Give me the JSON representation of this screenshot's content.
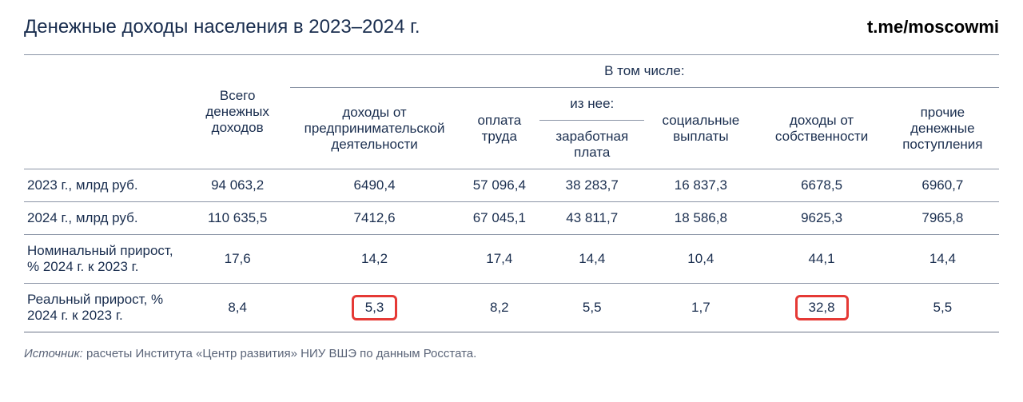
{
  "header": {
    "title": "Денежные доходы населения в 2023–2024 г.",
    "credit": "t.me/moscowmi"
  },
  "table": {
    "group_header": "В том числе:",
    "sub_group_header": "из нее:",
    "columns": {
      "total": "Всего денежных доходов",
      "business": "доходы от предпринимательской деятельности",
      "labor": "оплата труда",
      "wage": "заработная плата",
      "social": "социальные выплаты",
      "property": "доходы от собственности",
      "other": "прочие денежные поступления"
    },
    "rows": [
      {
        "label": "2023 г., млрд руб.",
        "total": "94 063,2",
        "business": "6490,4",
        "labor": "57 096,4",
        "wage": "38 283,7",
        "social": "16 837,3",
        "property": "6678,5",
        "other": "6960,7"
      },
      {
        "label": "2024 г., млрд руб.",
        "total": "110 635,5",
        "business": "7412,6",
        "labor": "67 045,1",
        "wage": "43 811,7",
        "social": "18 586,8",
        "property": "9625,3",
        "other": "7965,8"
      },
      {
        "label": "Номинальный прирост, % 2024 г. к  2023 г.",
        "total": "17,6",
        "business": "14,2",
        "labor": "17,4",
        "wage": "14,4",
        "social": "10,4",
        "property": "44,1",
        "other": "14,4"
      },
      {
        "label": "Реальный прирост, % 2024 г. к  2023 г.",
        "total": "8,4",
        "business": "5,3",
        "labor": "8,2",
        "wage": "5,5",
        "social": "1,7",
        "property": "32,8",
        "other": "5,5"
      }
    ],
    "highlights": {
      "row": 3,
      "cols": [
        "business",
        "property"
      ]
    }
  },
  "footnote": {
    "label": "Источник:",
    "text": " расчеты Института «Центр развития» НИУ ВШЭ по данным Росстата."
  },
  "style": {
    "title_color": "#1a2e4f",
    "text_color": "#1a2e4f",
    "border_color": "#8a94a6",
    "highlight_border": "#e53935",
    "background": "#ffffff",
    "footnote_color": "#5a6478",
    "title_fontsize": 24,
    "cell_fontsize": 17,
    "footnote_fontsize": 15
  }
}
